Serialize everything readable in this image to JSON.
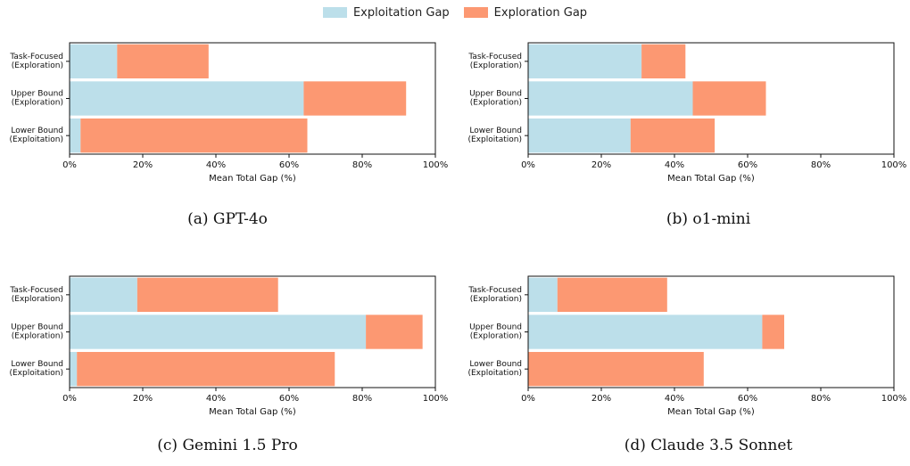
{
  "legend": [
    {
      "label": "Exploitation Gap",
      "color": "#bcdfea"
    },
    {
      "label": "Exploration Gap",
      "color": "#fc9872"
    }
  ],
  "captions": [
    "(a) GPT-4o",
    "(b) o1-mini",
    "(c) Gemini 1.5 Pro",
    "(d) Claude 3.5 Sonnet"
  ],
  "chart_data": [
    {
      "type": "bar",
      "orientation": "horizontal",
      "stacked": true,
      "categories": [
        [
          "Task-Focused",
          "(Exploration)"
        ],
        [
          "Upper Bound",
          "(Exploration)"
        ],
        [
          "Lower Bound",
          "(Exploitation)"
        ]
      ],
      "series": [
        {
          "name": "Exploitation Gap",
          "values": [
            13,
            64,
            3
          ]
        },
        {
          "name": "Exploration Gap",
          "values": [
            25,
            28,
            62
          ]
        }
      ],
      "xlabel": "Mean Total Gap (%)",
      "xlim": [
        0,
        100
      ],
      "xticks": [
        "0%",
        "20%",
        "40%",
        "60%",
        "80%",
        "100%"
      ],
      "legend": "top-center"
    },
    {
      "type": "bar",
      "orientation": "horizontal",
      "stacked": true,
      "categories": [
        [
          "Task-Focused",
          "(Exploration)"
        ],
        [
          "Upper Bound",
          "(Exploration)"
        ],
        [
          "Lower Bound",
          "(Exploitation)"
        ]
      ],
      "series": [
        {
          "name": "Exploitation Gap",
          "values": [
            31,
            45,
            28
          ]
        },
        {
          "name": "Exploration Gap",
          "values": [
            12,
            20,
            23
          ]
        }
      ],
      "xlabel": "Mean Total Gap (%)",
      "xlim": [
        0,
        100
      ],
      "xticks": [
        "0%",
        "20%",
        "40%",
        "60%",
        "80%",
        "100%"
      ],
      "legend": "top-center"
    },
    {
      "type": "bar",
      "orientation": "horizontal",
      "stacked": true,
      "categories": [
        [
          "Task-Focused",
          "(Exploration)"
        ],
        [
          "Upper Bound",
          "(Exploration)"
        ],
        [
          "Lower Bound",
          "(Exploitation)"
        ]
      ],
      "series": [
        {
          "name": "Exploitation Gap",
          "values": [
            18.5,
            81,
            2
          ]
        },
        {
          "name": "Exploration Gap",
          "values": [
            38.5,
            15.5,
            70.5
          ]
        }
      ],
      "xlabel": "Mean Total Gap (%)",
      "xlim": [
        0,
        100
      ],
      "xticks": [
        "0%",
        "20%",
        "40%",
        "60%",
        "80%",
        "100%"
      ],
      "legend": "top-center"
    },
    {
      "type": "bar",
      "orientation": "horizontal",
      "stacked": true,
      "categories": [
        [
          "Task-Focused",
          "(Exploration)"
        ],
        [
          "Upper Bound",
          "(Exploration)"
        ],
        [
          "Lower Bound",
          "(Exploitation)"
        ]
      ],
      "series": [
        {
          "name": "Exploitation Gap",
          "values": [
            8,
            64,
            0
          ]
        },
        {
          "name": "Exploration Gap",
          "values": [
            30,
            6,
            48
          ]
        }
      ],
      "xlabel": "Mean Total Gap (%)",
      "xlim": [
        0,
        100
      ],
      "xticks": [
        "0%",
        "20%",
        "40%",
        "60%",
        "80%",
        "100%"
      ],
      "legend": "top-center"
    }
  ]
}
